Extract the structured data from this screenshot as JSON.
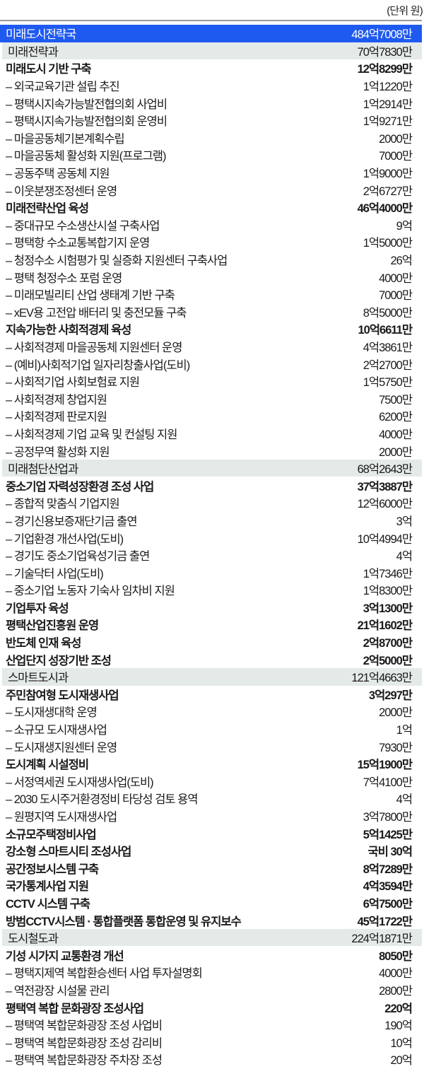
{
  "unit_label": "(단위 원)",
  "colors": {
    "bureau_bg": "#1f5af0",
    "dept_bg": "#e4eae7"
  },
  "rows": [
    {
      "type": "bureau",
      "label": "미래도시전략국",
      "amount": "484억7008만"
    },
    {
      "type": "dept",
      "label": "미래전략과",
      "amount": "70억7830만"
    },
    {
      "type": "bold",
      "label": "미래도시 기반 구축",
      "amount": "12억8299만"
    },
    {
      "type": "sub",
      "label": "– 외국교육기관 설립 추진",
      "amount": "1억1220만"
    },
    {
      "type": "sub",
      "label": "– 평택시지속가능발전협의회 사업비",
      "amount": "1억2914만"
    },
    {
      "type": "sub",
      "label": "– 평택시지속가능발전협의회 운영비",
      "amount": "1억9271만"
    },
    {
      "type": "sub",
      "label": "– 마을공동체기본계획수립",
      "amount": "2000만"
    },
    {
      "type": "sub",
      "label": "– 마을공동체 활성화 지원(프로그램)",
      "amount": "7000만"
    },
    {
      "type": "sub",
      "label": "– 공동주택 공동체 지원",
      "amount": "1억9000만"
    },
    {
      "type": "sub",
      "label": "– 이웃분쟁조정센터 운영",
      "amount": "2억6727만"
    },
    {
      "type": "bold",
      "label": "미래전략산업 육성",
      "amount": "46억4000만"
    },
    {
      "type": "sub",
      "label": "– 중대규모 수소생산시설 구축사업",
      "amount": "9억"
    },
    {
      "type": "sub",
      "label": "– 평택항 수소교통복합기지 운영",
      "amount": "1억5000만"
    },
    {
      "type": "sub",
      "label": "– 청정수소 시험평가 및 실증화 지원센터 구축사업",
      "amount": "26억"
    },
    {
      "type": "sub",
      "label": "– 평택 청정수소 포럼 운영",
      "amount": "4000만"
    },
    {
      "type": "sub",
      "label": "– 미래모빌리티 산업 생태계 기반 구축",
      "amount": "7000만"
    },
    {
      "type": "sub",
      "label": "– xEV용 고전압 배터리 및 충전모듈 구축",
      "amount": "8억5000만"
    },
    {
      "type": "bold",
      "label": "지속가능한 사회적경제 육성",
      "amount": "10억6611만"
    },
    {
      "type": "sub",
      "label": "– 사회적경제 마을공동체 지원센터 운영",
      "amount": "4억3861만"
    },
    {
      "type": "sub",
      "label": "– (예비)사회적기업 일자리창출사업(도비)",
      "amount": "2억2700만"
    },
    {
      "type": "sub",
      "label": "– 사회적기업 사회보험료 지원",
      "amount": "1억5750만"
    },
    {
      "type": "sub",
      "label": "– 사회적경제 창업지원",
      "amount": "7500만"
    },
    {
      "type": "sub",
      "label": "– 사회적경제 판로지원",
      "amount": "6200만"
    },
    {
      "type": "sub",
      "label": "– 사회적경제 기업 교육 및 컨설팅 지원",
      "amount": "4000만"
    },
    {
      "type": "sub",
      "label": "– 공정무역 활성화 지원",
      "amount": "2000만"
    },
    {
      "type": "dept",
      "label": "미래첨단산업과",
      "amount": "68억2643만"
    },
    {
      "type": "bold",
      "label": "중소기업 자력성장환경 조성 사업",
      "amount": "37억3887만"
    },
    {
      "type": "sub",
      "label": "– 종합적 맞춤식 기업지원",
      "amount": "12억6000만"
    },
    {
      "type": "sub",
      "label": "– 경기신용보증재단기금 출연",
      "amount": "3억"
    },
    {
      "type": "sub",
      "label": "– 기업환경 개선사업(도비)",
      "amount": "10억4994만"
    },
    {
      "type": "sub",
      "label": "– 경기도 중소기업육성기금 출연",
      "amount": "4억"
    },
    {
      "type": "sub",
      "label": "– 기술닥터 사업(도비)",
      "amount": "1억7346만"
    },
    {
      "type": "sub",
      "label": "– 중소기업 노동자 기숙사 임차비 지원",
      "amount": "1억8300만"
    },
    {
      "type": "bold",
      "label": "기업투자 육성",
      "amount": "3억1300만"
    },
    {
      "type": "bold",
      "label": "평택산업진흥원 운영",
      "amount": "21억1602만"
    },
    {
      "type": "bold",
      "label": "반도체 인재 육성",
      "amount": "2억8700만"
    },
    {
      "type": "bold",
      "label": "산업단지 성장기반 조성",
      "amount": "2억5000만"
    },
    {
      "type": "dept",
      "label": "스마트도시과",
      "amount": "121억4663만"
    },
    {
      "type": "bold",
      "label": "주민참여형 도시재생사업",
      "amount": "3억297만"
    },
    {
      "type": "sub",
      "label": "– 도시재생대학 운영",
      "amount": "2000만"
    },
    {
      "type": "sub",
      "label": "– 소규모 도시재생사업",
      "amount": "1억"
    },
    {
      "type": "sub",
      "label": "– 도시재생지원센터 운영",
      "amount": "7930만"
    },
    {
      "type": "bold",
      "label": "도시계획 시설정비",
      "amount": "15억1900만"
    },
    {
      "type": "sub",
      "label": "– 서정역세권 도시재생사업(도비)",
      "amount": "7억4100만"
    },
    {
      "type": "sub",
      "label": "– 2030 도시주거환경정비 타당성 검토 용역",
      "amount": "4억"
    },
    {
      "type": "sub",
      "label": "– 원평지역 도시재생사업",
      "amount": "3억7800만"
    },
    {
      "type": "bold",
      "label": "소규모주택정비사업",
      "amount": "5억1425만"
    },
    {
      "type": "bold",
      "label": "강소형 스마트시티 조성사업",
      "amount": "국비 30억"
    },
    {
      "type": "bold",
      "label": "공간정보시스템 구축",
      "amount": "8억7289만"
    },
    {
      "type": "bold",
      "label": "국가통계사업 지원",
      "amount": "4억3594만"
    },
    {
      "type": "bold",
      "label": "CCTV 시스템 구축",
      "amount": "6억7500만"
    },
    {
      "type": "bold",
      "label": "방범CCTV시스템 · 통합플랫폼 통합운영 및 유지보수",
      "amount": "45억1722만"
    },
    {
      "type": "dept",
      "label": "도시철도과",
      "amount": "224억1871만"
    },
    {
      "type": "bold",
      "label": "기성 시가지 교통환경 개선",
      "amount": "8050만"
    },
    {
      "type": "sub",
      "label": "– 평택지제역 복합환승센터 사업 투자설명회",
      "amount": "4000만"
    },
    {
      "type": "sub",
      "label": "– 역전광장 시설물 관리",
      "amount": "2800만"
    },
    {
      "type": "bold",
      "label": "평택역 복합 문화광장 조성사업",
      "amount": "220억"
    },
    {
      "type": "sub",
      "label": "– 평택역 복합문화광장 조성 사업비",
      "amount": "190억"
    },
    {
      "type": "sub",
      "label": "– 평택역 복합문화광장 조성 감리비",
      "amount": "10억"
    },
    {
      "type": "sub",
      "label": "– 평택역 복합문화광장 주차장 조성",
      "amount": "20억"
    }
  ]
}
